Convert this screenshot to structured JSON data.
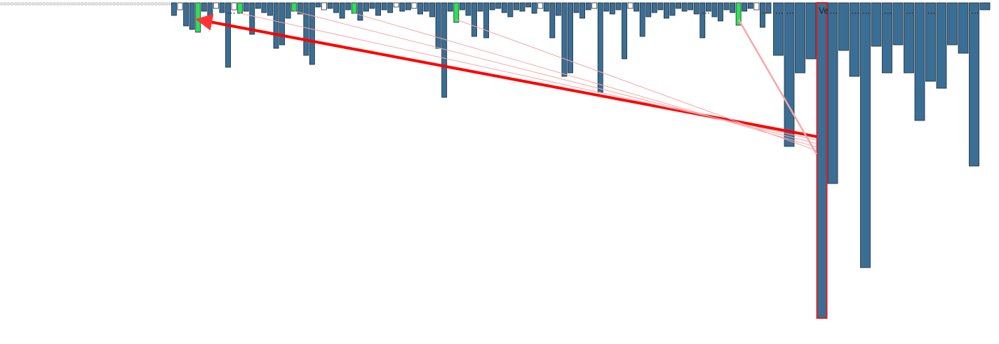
{
  "chart_data": [
    {
      "type": "bar",
      "color": "#3b6e94",
      "link_color": "#2ee05a",
      "ylim": [
        0,
        450
      ],
      "values": [
        18,
        10,
        33,
        38,
        42,
        12,
        20,
        8,
        14,
        92,
        10,
        15,
        12,
        45,
        8,
        14,
        18,
        65,
        60,
        22,
        12,
        16,
        75,
        88,
        6,
        10,
        8,
        14,
        22,
        10,
        15,
        25,
        12,
        8,
        18,
        10,
        14,
        6,
        12,
        10,
        8,
        16,
        12,
        20,
        65,
        135,
        12,
        28,
        10,
        18,
        48,
        12,
        50,
        10,
        8,
        14,
        20,
        10,
        12,
        6,
        15,
        8,
        12,
        50,
        18,
        105,
        100,
        14,
        22,
        10,
        8,
        128,
        12,
        16,
        10,
        80,
        8,
        12,
        48,
        20,
        14,
        10,
        22,
        18,
        8,
        12,
        10,
        16,
        50,
        12,
        20,
        26,
        10,
        14,
        32,
        12,
        8,
        10,
        35,
        15
      ],
      "categories": [
        null,
        null,
        null,
        null,
        null,
        null,
        null,
        null,
        null,
        "...",
        null,
        null,
        null,
        null,
        null,
        null,
        null,
        null,
        null,
        null,
        null,
        null,
        null,
        null,
        null,
        null,
        null,
        null,
        null,
        null,
        null,
        null,
        null,
        null,
        null,
        null,
        null,
        null,
        null,
        null,
        null,
        null,
        null,
        null,
        null,
        null,
        null,
        null,
        null,
        null,
        null,
        null,
        null,
        null,
        null,
        null,
        null,
        null,
        null,
        null,
        null,
        null,
        null,
        null,
        null,
        null,
        null,
        null,
        null,
        null,
        null,
        null,
        null,
        null,
        null,
        null,
        null,
        null,
        null,
        null,
        null,
        null,
        null,
        null,
        null,
        null,
        null,
        null,
        "...",
        null,
        null,
        null,
        null,
        null,
        null,
        null,
        null,
        null,
        "...",
        null
      ],
      "linked": [
        4,
        11,
        20,
        30,
        47,
        94
      ]
    },
    {
      "type": "bar",
      "color": "#3b6e94",
      "highlight_color": "#e02020",
      "ylim": [
        0,
        450
      ],
      "highlight": 4,
      "values": [
        75,
        205,
        100,
        80,
        450,
        258,
        68,
        105,
        378,
        62,
        100,
        60,
        100,
        168,
        112,
        122,
        60,
        72,
        233,
        10
      ],
      "categories": [
        "...",
        "...",
        null,
        null,
        "Ve...",
        "...",
        null,
        "...",
        "...",
        null,
        "...",
        null,
        "...",
        null,
        "...",
        null,
        null,
        null,
        "...",
        null
      ]
    }
  ]
}
